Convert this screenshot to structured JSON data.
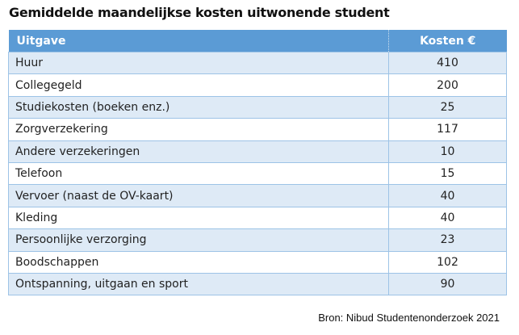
{
  "title": "Gemiddelde maandelijkse kosten uitwonende student",
  "table": {
    "headers": [
      "Uitgave",
      "Kosten €"
    ],
    "rows": [
      [
        "Huur",
        "410"
      ],
      [
        "Collegegeld",
        "200"
      ],
      [
        "Studiekosten (boeken enz.)",
        "25"
      ],
      [
        "Zorgverzekering",
        "117"
      ],
      [
        "Andere verzekeringen",
        "10"
      ],
      [
        "Telefoon",
        "15"
      ],
      [
        "Vervoer (naast de OV-kaart)",
        "40"
      ],
      [
        "Kleding",
        "40"
      ],
      [
        "Persoonlijke verzorging",
        "23"
      ],
      [
        "Boodschappen",
        "102"
      ],
      [
        "Ontspanning, uitgaan en sport",
        "90"
      ]
    ]
  },
  "source": "Bron: Nibud Studentenonderzoek 2021",
  "colors": {
    "header": "#5b9bd5",
    "stripe": "#deeaf6",
    "border": "#9dc3e6"
  }
}
